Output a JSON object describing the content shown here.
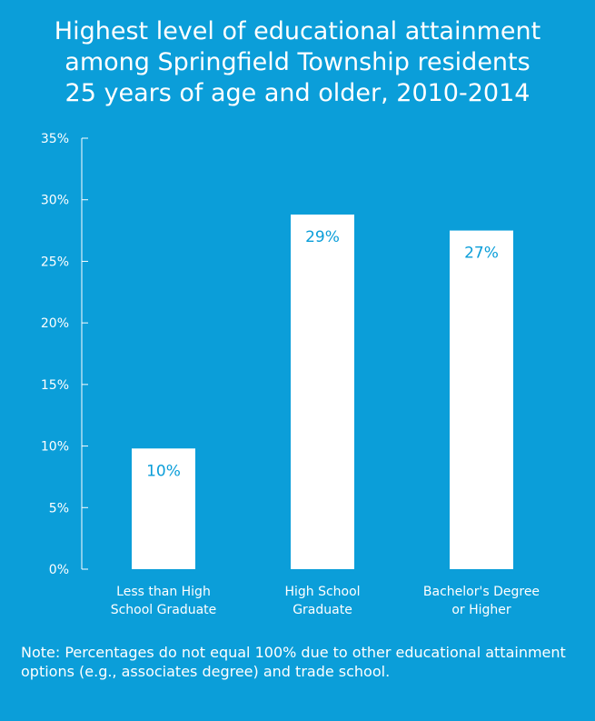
{
  "title": "Highest level of educational attainment\namong Springfield Township residents\n25 years of age and older, 2010-2014",
  "note": "Note: Percentages do not equal 100% due to other educational attainment options (e.g., associates degree) and trade school.",
  "colors": {
    "background": "#0b9ed9",
    "bar": "#ffffff",
    "text": "#ffffff",
    "data_label": "#0b9ed9"
  },
  "chart_data": {
    "type": "bar",
    "categories": [
      [
        "Less than High",
        "School Graduate"
      ],
      [
        "High School",
        "Graduate"
      ],
      [
        "Bachelor's Degree",
        "or Higher"
      ]
    ],
    "values": [
      9.8,
      28.8,
      27.5
    ],
    "data_labels": [
      "10%",
      "29%",
      "27%"
    ],
    "yticks": [
      "0%",
      "5%",
      "10%",
      "15%",
      "20%",
      "25%",
      "30%",
      "35%"
    ],
    "ytick_values": [
      0,
      5,
      10,
      15,
      20,
      25,
      30,
      35
    ],
    "ylim": [
      0,
      35
    ],
    "grid": false,
    "legend": "none"
  }
}
